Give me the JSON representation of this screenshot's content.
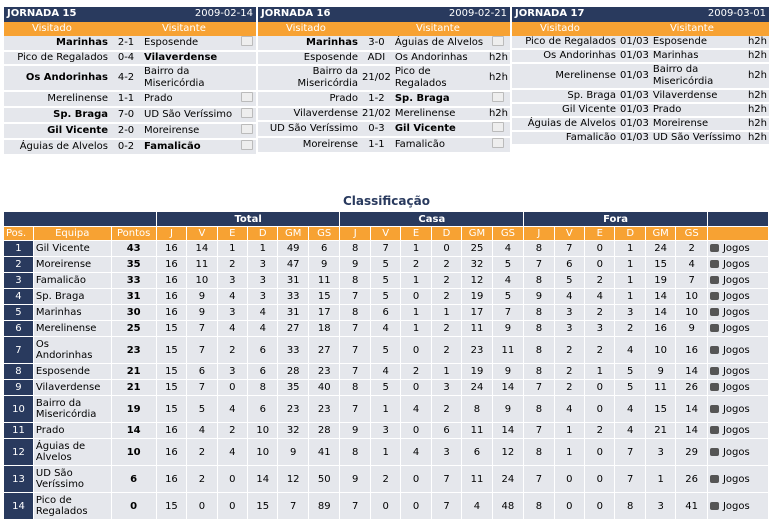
{
  "rounds": [
    {
      "title": "JORNADA 15",
      "date": "2009-02-14",
      "home_label": "Visitado",
      "away_label": "Visitante",
      "matches": [
        {
          "home": "Marinhas",
          "score": "2-1",
          "away": "Esposende",
          "home_bold": true,
          "away_bold": false,
          "extra": "tv"
        },
        {
          "home": "Pico de Regalados",
          "score": "0-4",
          "away": "Vilaverdense",
          "home_bold": false,
          "away_bold": true,
          "extra": ""
        },
        {
          "home": "Os Andorinhas",
          "score": "4-2",
          "away": "Bairro da Misericórdia",
          "home_bold": true,
          "away_bold": false,
          "extra": ""
        },
        {
          "home": "Merelinense",
          "score": "1-1",
          "away": "Prado",
          "home_bold": false,
          "away_bold": false,
          "extra": "tv"
        },
        {
          "home": "Sp. Braga",
          "score": "7-0",
          "away": "UD São Veríssimo",
          "home_bold": true,
          "away_bold": false,
          "extra": "tv"
        },
        {
          "home": "Gil Vicente",
          "score": "2-0",
          "away": "Moreirense",
          "home_bold": true,
          "away_bold": false,
          "extra": "tv"
        },
        {
          "home": "Águias de Alvelos",
          "score": "0-2",
          "away": "Famalicão",
          "home_bold": false,
          "away_bold": true,
          "extra": "tv"
        }
      ]
    },
    {
      "title": "JORNADA 16",
      "date": "2009-02-21",
      "home_label": "Visitado",
      "away_label": "Visitante",
      "matches": [
        {
          "home": "Marinhas",
          "score": "3-0",
          "away": "Águias de Alvelos",
          "home_bold": true,
          "away_bold": false,
          "extra": "tv"
        },
        {
          "home": "Esposende",
          "score": "ADI",
          "away": "Os Andorinhas",
          "home_bold": false,
          "away_bold": false,
          "extra": "h2h"
        },
        {
          "home": "Bairro da Misericórdia",
          "score": "21/02",
          "away": "Pico de Regalados",
          "home_bold": false,
          "away_bold": false,
          "extra": "h2h"
        },
        {
          "home": "Prado",
          "score": "1-2",
          "away": "Sp. Braga",
          "home_bold": false,
          "away_bold": true,
          "extra": "tv"
        },
        {
          "home": "Vilaverdense",
          "score": "21/02",
          "away": "Merelinense",
          "home_bold": false,
          "away_bold": false,
          "extra": "h2h"
        },
        {
          "home": "UD São Veríssimo",
          "score": "0-3",
          "away": "Gil Vicente",
          "home_bold": false,
          "away_bold": true,
          "extra": "tv"
        },
        {
          "home": "Moreirense",
          "score": "1-1",
          "away": "Famalicão",
          "home_bold": false,
          "away_bold": false,
          "extra": "tv"
        }
      ]
    },
    {
      "title": "JORNADA 17",
      "date": "2009-03-01",
      "home_label": "Visitado",
      "away_label": "Visitante",
      "matches": [
        {
          "home": "Pico de Regalados",
          "score": "01/03",
          "away": "Esposende",
          "home_bold": false,
          "away_bold": false,
          "extra": "h2h"
        },
        {
          "home": "Os Andorinhas",
          "score": "01/03",
          "away": "Marinhas",
          "home_bold": false,
          "away_bold": false,
          "extra": "h2h"
        },
        {
          "home": "Merelinense",
          "score": "01/03",
          "away": "Bairro da Misericórdia",
          "home_bold": false,
          "away_bold": false,
          "extra": "h2h"
        },
        {
          "home": "Sp. Braga",
          "score": "01/03",
          "away": "Vilaverdense",
          "home_bold": false,
          "away_bold": false,
          "extra": "h2h"
        },
        {
          "home": "Gil Vicente",
          "score": "01/03",
          "away": "Prado",
          "home_bold": false,
          "away_bold": false,
          "extra": "h2h"
        },
        {
          "home": "Águias de Alvelos",
          "score": "01/03",
          "away": "Moreirense",
          "home_bold": false,
          "away_bold": false,
          "extra": "h2h"
        },
        {
          "home": "Famalicão",
          "score": "01/03",
          "away": "UD São Veríssimo",
          "home_bold": false,
          "away_bold": false,
          "extra": "h2h"
        }
      ]
    }
  ],
  "standings": {
    "title": "Classificação",
    "group_headers": [
      "Total",
      "Casa",
      "Fora"
    ],
    "columns": [
      "Pos.",
      "Equipa",
      "Pontos",
      "J",
      "V",
      "E",
      "D",
      "GM",
      "GS",
      "J",
      "V",
      "E",
      "D",
      "GM",
      "GS",
      "J",
      "V",
      "E",
      "D",
      "GM",
      "GS"
    ],
    "link_label": "Jogos",
    "rows": [
      {
        "pos": "1",
        "team": "Gil Vicente",
        "pts": "43",
        "total": [
          "16",
          "14",
          "1",
          "1",
          "49",
          "6"
        ],
        "home": [
          "8",
          "7",
          "1",
          "0",
          "25",
          "4"
        ],
        "away": [
          "8",
          "7",
          "0",
          "1",
          "24",
          "2"
        ]
      },
      {
        "pos": "2",
        "team": "Moreirense",
        "pts": "35",
        "total": [
          "16",
          "11",
          "2",
          "3",
          "47",
          "9"
        ],
        "home": [
          "9",
          "5",
          "2",
          "2",
          "32",
          "5"
        ],
        "away": [
          "7",
          "6",
          "0",
          "1",
          "15",
          "4"
        ]
      },
      {
        "pos": "3",
        "team": "Famalicão",
        "pts": "33",
        "total": [
          "16",
          "10",
          "3",
          "3",
          "31",
          "11"
        ],
        "home": [
          "8",
          "5",
          "1",
          "2",
          "12",
          "4"
        ],
        "away": [
          "8",
          "5",
          "2",
          "1",
          "19",
          "7"
        ]
      },
      {
        "pos": "4",
        "team": "Sp. Braga",
        "pts": "31",
        "total": [
          "16",
          "9",
          "4",
          "3",
          "33",
          "15"
        ],
        "home": [
          "7",
          "5",
          "0",
          "2",
          "19",
          "5"
        ],
        "away": [
          "9",
          "4",
          "4",
          "1",
          "14",
          "10"
        ]
      },
      {
        "pos": "5",
        "team": "Marinhas",
        "pts": "30",
        "total": [
          "16",
          "9",
          "3",
          "4",
          "31",
          "17"
        ],
        "home": [
          "8",
          "6",
          "1",
          "1",
          "17",
          "7"
        ],
        "away": [
          "8",
          "3",
          "2",
          "3",
          "14",
          "10"
        ]
      },
      {
        "pos": "6",
        "team": "Merelinense",
        "pts": "25",
        "total": [
          "15",
          "7",
          "4",
          "4",
          "27",
          "18"
        ],
        "home": [
          "7",
          "4",
          "1",
          "2",
          "11",
          "9"
        ],
        "away": [
          "8",
          "3",
          "3",
          "2",
          "16",
          "9"
        ]
      },
      {
        "pos": "7",
        "team": "Os Andorinhas",
        "pts": "23",
        "total": [
          "15",
          "7",
          "2",
          "6",
          "33",
          "27"
        ],
        "home": [
          "7",
          "5",
          "0",
          "2",
          "23",
          "11"
        ],
        "away": [
          "8",
          "2",
          "2",
          "4",
          "10",
          "16"
        ]
      },
      {
        "pos": "8",
        "team": "Esposende",
        "pts": "21",
        "total": [
          "15",
          "6",
          "3",
          "6",
          "28",
          "23"
        ],
        "home": [
          "7",
          "4",
          "2",
          "1",
          "19",
          "9"
        ],
        "away": [
          "8",
          "2",
          "1",
          "5",
          "9",
          "14"
        ]
      },
      {
        "pos": "9",
        "team": "Vilaverdense",
        "pts": "21",
        "total": [
          "15",
          "7",
          "0",
          "8",
          "35",
          "40"
        ],
        "home": [
          "8",
          "5",
          "0",
          "3",
          "24",
          "14"
        ],
        "away": [
          "7",
          "2",
          "0",
          "5",
          "11",
          "26"
        ]
      },
      {
        "pos": "10",
        "team": "Bairro da Misericórdia",
        "pts": "19",
        "total": [
          "15",
          "5",
          "4",
          "6",
          "23",
          "23"
        ],
        "home": [
          "7",
          "1",
          "4",
          "2",
          "8",
          "9"
        ],
        "away": [
          "8",
          "4",
          "0",
          "4",
          "15",
          "14"
        ]
      },
      {
        "pos": "11",
        "team": "Prado",
        "pts": "14",
        "total": [
          "16",
          "4",
          "2",
          "10",
          "32",
          "28"
        ],
        "home": [
          "9",
          "3",
          "0",
          "6",
          "11",
          "14"
        ],
        "away": [
          "7",
          "1",
          "2",
          "4",
          "21",
          "14"
        ]
      },
      {
        "pos": "12",
        "team": "Águias de Alvelos",
        "pts": "10",
        "total": [
          "16",
          "2",
          "4",
          "10",
          "9",
          "41"
        ],
        "home": [
          "8",
          "1",
          "4",
          "3",
          "6",
          "12"
        ],
        "away": [
          "8",
          "1",
          "0",
          "7",
          "3",
          "29"
        ]
      },
      {
        "pos": "13",
        "team": "UD São Veríssimo",
        "pts": "6",
        "total": [
          "16",
          "2",
          "0",
          "14",
          "12",
          "50"
        ],
        "home": [
          "9",
          "2",
          "0",
          "7",
          "11",
          "24"
        ],
        "away": [
          "7",
          "0",
          "0",
          "7",
          "1",
          "26"
        ]
      },
      {
        "pos": "14",
        "team": "Pico de Regalados",
        "pts": "0",
        "total": [
          "15",
          "0",
          "0",
          "15",
          "7",
          "89"
        ],
        "home": [
          "7",
          "0",
          "0",
          "7",
          "4",
          "48"
        ],
        "away": [
          "8",
          "0",
          "0",
          "8",
          "3",
          "41"
        ]
      }
    ]
  }
}
